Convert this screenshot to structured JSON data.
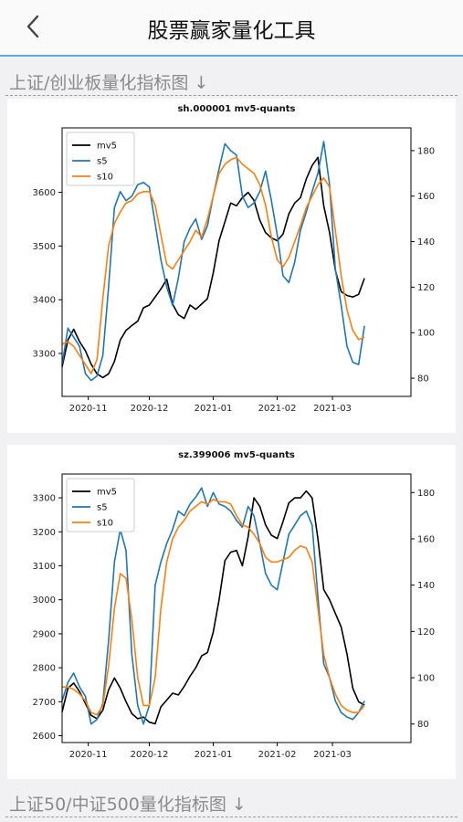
{
  "header": {
    "title": "股票赢家量化工具",
    "back_icon": "chevron-left-icon"
  },
  "sections": [
    {
      "label": "上证/创业板量化指标图 ↓"
    },
    {
      "label": "上证50/中证500量化指标图 ↓"
    }
  ],
  "colors": {
    "mv5": "#000000",
    "s5": "#1f77b4",
    "s10": "#ff7f0e",
    "accent": "#5ba8e6"
  },
  "chart_data": [
    {
      "type": "line",
      "title": "sh.000001 mv5-quants",
      "x_tick_labels": [
        "2020-11",
        "2020-12",
        "2021-01",
        "2021-02",
        "2021-03"
      ],
      "x_tick_positions": [
        9,
        30,
        52,
        74,
        93
      ],
      "x_range": [
        0,
        120
      ],
      "ylim_left": [
        3220,
        3720
      ],
      "ylim_right": [
        72,
        190
      ],
      "yticks_left": [
        3300,
        3400,
        3500,
        3600
      ],
      "yticks_right": [
        80,
        100,
        120,
        140,
        160,
        180
      ],
      "legend": {
        "position": "top-left",
        "entries": [
          "mv5",
          "s5",
          "s10"
        ]
      },
      "series": [
        {
          "name": "mv5",
          "axis": "left",
          "x": [
            0,
            2,
            4,
            6,
            8,
            10,
            12,
            14,
            16,
            18,
            20,
            22,
            24,
            26,
            28,
            30,
            32,
            34,
            36,
            38,
            40,
            42,
            44,
            46,
            48,
            50,
            52,
            54,
            56,
            58,
            60,
            62,
            64,
            66,
            68,
            70,
            72,
            74,
            76,
            78,
            80,
            82,
            84,
            86,
            88,
            90,
            92,
            94,
            96,
            98,
            100,
            102,
            104
          ],
          "y": [
            3275,
            3325,
            3345,
            3322,
            3305,
            3280,
            3262,
            3255,
            3262,
            3285,
            3325,
            3343,
            3352,
            3360,
            3385,
            3390,
            3405,
            3420,
            3438,
            3392,
            3372,
            3365,
            3390,
            3382,
            3392,
            3402,
            3450,
            3510,
            3545,
            3580,
            3575,
            3590,
            3600,
            3585,
            3548,
            3525,
            3515,
            3510,
            3522,
            3560,
            3580,
            3590,
            3625,
            3650,
            3665,
            3575,
            3525,
            3455,
            3415,
            3408,
            3405,
            3410,
            3440
          ]
        },
        {
          "name": "s5",
          "axis": "right",
          "x": [
            0,
            2,
            4,
            6,
            8,
            10,
            12,
            14,
            16,
            18,
            20,
            22,
            24,
            26,
            28,
            30,
            32,
            34,
            36,
            38,
            40,
            42,
            44,
            46,
            48,
            50,
            52,
            54,
            56,
            58,
            60,
            62,
            64,
            66,
            68,
            70,
            72,
            74,
            76,
            78,
            80,
            82,
            84,
            86,
            88,
            90,
            92,
            94,
            96,
            98,
            100,
            102,
            104
          ],
          "y": [
            86,
            102,
            98,
            94,
            82,
            79,
            81,
            90,
            120,
            155,
            162,
            158,
            160,
            165,
            166,
            164,
            148,
            132,
            120,
            112,
            124,
            140,
            146,
            150,
            141,
            147,
            160,
            172,
            183,
            180,
            178,
            160,
            155,
            157,
            162,
            171,
            158,
            143,
            125,
            122,
            131,
            145,
            153,
            162,
            170,
            184,
            165,
            128,
            112,
            94,
            87,
            86,
            103
          ]
        },
        {
          "name": "s10",
          "axis": "right",
          "x": [
            0,
            2,
            4,
            6,
            8,
            10,
            12,
            14,
            16,
            18,
            20,
            22,
            24,
            26,
            28,
            30,
            32,
            34,
            36,
            38,
            40,
            42,
            44,
            46,
            48,
            50,
            52,
            54,
            56,
            58,
            60,
            62,
            64,
            66,
            68,
            70,
            72,
            74,
            76,
            78,
            80,
            82,
            84,
            86,
            88,
            90,
            92,
            94,
            96,
            98,
            100,
            102,
            104
          ],
          "y": [
            95,
            96,
            94,
            90,
            86,
            82,
            88,
            115,
            138,
            148,
            153,
            157,
            158,
            161,
            162,
            162,
            156,
            143,
            130,
            128,
            132,
            136,
            140,
            145,
            142,
            150,
            160,
            170,
            174,
            176,
            177,
            174,
            172,
            170,
            165,
            156,
            142,
            132,
            129,
            133,
            140,
            147,
            155,
            160,
            165,
            168,
            164,
            145,
            125,
            110,
            101,
            97,
            98
          ]
        }
      ]
    },
    {
      "type": "line",
      "title": "sz.399006 mv5-quants",
      "x_tick_labels": [
        "2020-11",
        "2020-12",
        "2021-01",
        "2021-02",
        "2021-03"
      ],
      "x_tick_positions": [
        9,
        30,
        52,
        74,
        93
      ],
      "x_range": [
        0,
        120
      ],
      "ylim_left": [
        2580,
        3370
      ],
      "ylim_right": [
        72,
        188
      ],
      "yticks_left": [
        2600,
        2700,
        2800,
        2900,
        3000,
        3100,
        3200,
        3300
      ],
      "yticks_right": [
        80,
        100,
        120,
        140,
        160,
        180
      ],
      "legend": {
        "position": "top-left",
        "entries": [
          "mv5",
          "s5",
          "s10"
        ]
      },
      "series": [
        {
          "name": "mv5",
          "axis": "left",
          "x": [
            0,
            2,
            4,
            6,
            8,
            10,
            12,
            14,
            16,
            18,
            20,
            22,
            24,
            26,
            28,
            30,
            32,
            34,
            36,
            38,
            40,
            42,
            44,
            46,
            48,
            50,
            52,
            54,
            56,
            58,
            60,
            62,
            64,
            66,
            68,
            70,
            72,
            74,
            76,
            78,
            80,
            82,
            84,
            86,
            88,
            90,
            92,
            94,
            96,
            98,
            100,
            102,
            104
          ],
          "y": [
            2670,
            2740,
            2755,
            2730,
            2695,
            2660,
            2650,
            2675,
            2735,
            2770,
            2740,
            2700,
            2665,
            2650,
            2655,
            2640,
            2635,
            2685,
            2705,
            2725,
            2720,
            2745,
            2775,
            2800,
            2835,
            2845,
            2905,
            3000,
            3115,
            3140,
            3145,
            3100,
            3185,
            3300,
            3275,
            3220,
            3190,
            3180,
            3230,
            3285,
            3300,
            3300,
            3320,
            3300,
            3180,
            3030,
            3000,
            2960,
            2920,
            2840,
            2740,
            2700,
            2690
          ]
        },
        {
          "name": "s5",
          "axis": "right",
          "x": [
            0,
            2,
            4,
            6,
            8,
            10,
            12,
            14,
            16,
            18,
            20,
            22,
            24,
            26,
            28,
            30,
            32,
            34,
            36,
            38,
            40,
            42,
            44,
            46,
            48,
            50,
            52,
            54,
            56,
            58,
            60,
            62,
            64,
            66,
            68,
            70,
            72,
            74,
            76,
            78,
            80,
            82,
            84,
            86,
            88,
            90,
            92,
            94,
            96,
            98,
            100,
            102,
            104
          ],
          "y": [
            90,
            98,
            102,
            96,
            92,
            80,
            82,
            89,
            116,
            150,
            164,
            155,
            110,
            88,
            80,
            88,
            140,
            150,
            158,
            164,
            172,
            170,
            175,
            178,
            182,
            174,
            180,
            175,
            174,
            172,
            168,
            165,
            174,
            170,
            158,
            145,
            140,
            138,
            150,
            162,
            166,
            170,
            172,
            166,
            135,
            106,
            100,
            90,
            85,
            83,
            82,
            85,
            90
          ]
        },
        {
          "name": "s10",
          "axis": "right",
          "x": [
            0,
            2,
            4,
            6,
            8,
            10,
            12,
            14,
            16,
            18,
            20,
            22,
            24,
            26,
            28,
            30,
            32,
            34,
            36,
            38,
            40,
            42,
            44,
            46,
            48,
            50,
            52,
            54,
            56,
            58,
            60,
            62,
            64,
            66,
            68,
            70,
            72,
            74,
            76,
            78,
            80,
            82,
            84,
            86,
            88,
            90,
            92,
            94,
            96,
            98,
            100,
            102,
            104
          ],
          "y": [
            96,
            96,
            95,
            93,
            90,
            85,
            84,
            88,
            105,
            130,
            145,
            143,
            125,
            100,
            88,
            88,
            100,
            130,
            150,
            160,
            165,
            168,
            172,
            174,
            176,
            175,
            177,
            176,
            176,
            175,
            170,
            166,
            165,
            162,
            158,
            152,
            150,
            150,
            151,
            152,
            155,
            157,
            156,
            150,
            130,
            110,
            100,
            93,
            88,
            86,
            85,
            85,
            88
          ]
        }
      ]
    }
  ]
}
